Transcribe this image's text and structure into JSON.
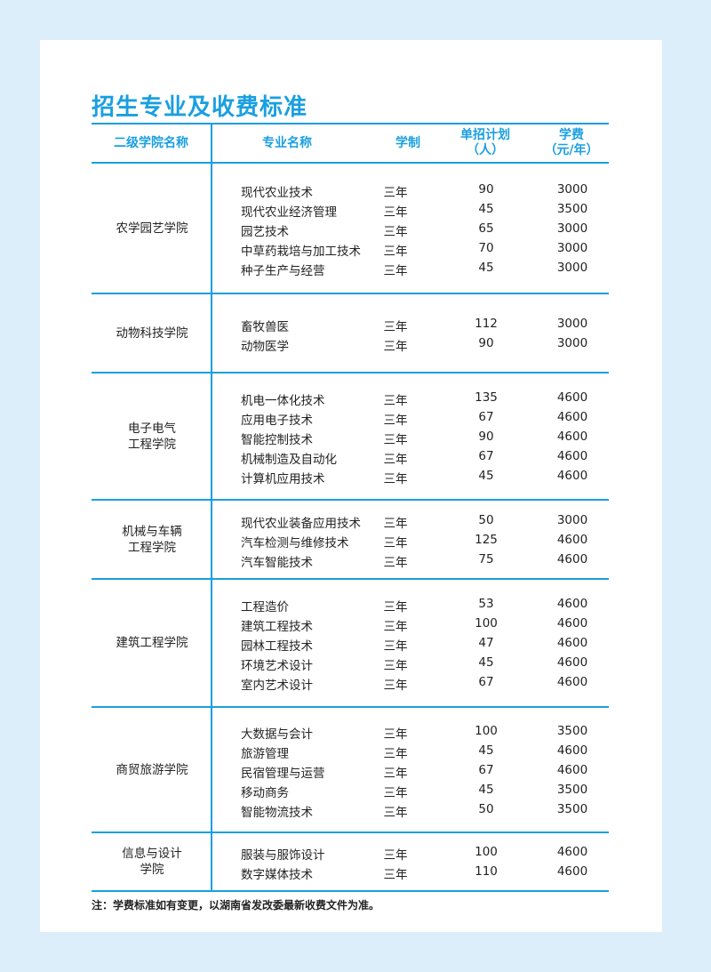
{
  "title": "招生专业及收费标准",
  "headers": {
    "college": "二级学院名称",
    "major": "专业名称",
    "length": "学制",
    "plan": "单招计划\n（人）",
    "fee": "学费\n（元/年）"
  },
  "groups": [
    {
      "college": "农学园艺学院",
      "rows": [
        [
          "现代农业技术",
          "三年",
          "90",
          "3000"
        ],
        [
          "现代农业经济管理",
          "三年",
          "45",
          "3500"
        ],
        [
          "园艺技术",
          "三年",
          "65",
          "3000"
        ],
        [
          "中草药栽培与加工技术",
          "三年",
          "70",
          "3000"
        ],
        [
          "种子生产与经营",
          "三年",
          "45",
          "3000"
        ]
      ]
    },
    {
      "college": "动物科技学院",
      "rows": [
        [
          "畜牧兽医",
          "三年",
          "112",
          "3000"
        ],
        [
          "动物医学",
          "三年",
          "90",
          "3000"
        ]
      ]
    },
    {
      "college": "电子电气\n工程学院",
      "rows": [
        [
          "机电一体化技术",
          "三年",
          "135",
          "4600"
        ],
        [
          "应用电子技术",
          "三年",
          "67",
          "4600"
        ],
        [
          "智能控制技术",
          "三年",
          "90",
          "4600"
        ],
        [
          "机械制造及自动化",
          "三年",
          "67",
          "4600"
        ],
        [
          "计算机应用技术",
          "三年",
          "45",
          "4600"
        ]
      ]
    },
    {
      "college": "机械与车辆\n工程学院",
      "rows": [
        [
          "现代农业装备应用技术",
          "三年",
          "50",
          "3000"
        ],
        [
          "汽车检测与维修技术",
          "三年",
          "125",
          "4600"
        ],
        [
          "汽车智能技术",
          "三年",
          "75",
          "4600"
        ]
      ]
    },
    {
      "college": "建筑工程学院",
      "rows": [
        [
          "工程造价",
          "三年",
          "53",
          "4600"
        ],
        [
          "建筑工程技术",
          "三年",
          "100",
          "4600"
        ],
        [
          "园林工程技术",
          "三年",
          "47",
          "4600"
        ],
        [
          "环境艺术设计",
          "三年",
          "45",
          "4600"
        ],
        [
          "室内艺术设计",
          "三年",
          "67",
          "4600"
        ]
      ]
    },
    {
      "college": "商贸旅游学院",
      "rows": [
        [
          "大数据与会计",
          "三年",
          "100",
          "3500"
        ],
        [
          "旅游管理",
          "三年",
          "45",
          "4600"
        ],
        [
          "民宿管理与运营",
          "三年",
          "67",
          "4600"
        ],
        [
          "移动商务",
          "三年",
          "45",
          "3500"
        ],
        [
          "智能物流技术",
          "三年",
          "50",
          "3500"
        ]
      ]
    },
    {
      "college": "信息与设计\n学院",
      "rows": [
        [
          "服装与服饰设计",
          "三年",
          "100",
          "4600"
        ],
        [
          "数字媒体技术",
          "三年",
          "110",
          "4600"
        ]
      ]
    }
  ],
  "note": "注：学费标准如有变更，以湖南省发改委最新收费文件为准。",
  "colors": {
    "accent": "#1a9fe0",
    "background": "#dceefa"
  }
}
